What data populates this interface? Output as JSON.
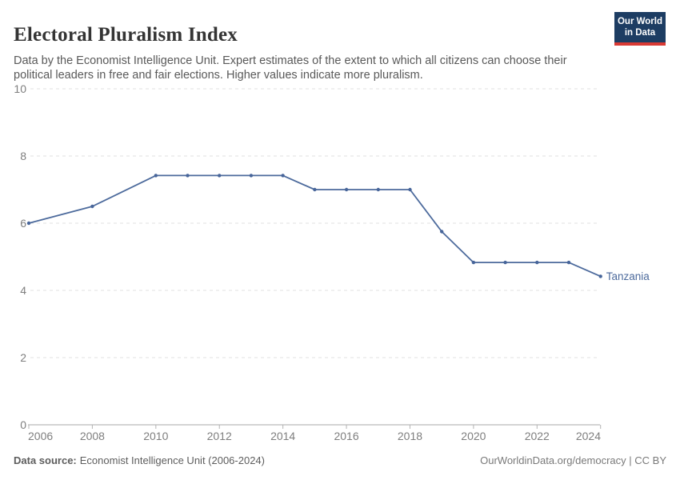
{
  "header": {
    "title": "Electoral Pluralism Index",
    "subtitle": "Data by the Economist Intelligence Unit. Expert estimates of the extent to which all citizens can choose their political leaders in free and fair elections. Higher values indicate more pluralism.",
    "logo": {
      "line1": "Our World",
      "line2": "in Data"
    }
  },
  "footer": {
    "source_label": "Data source:",
    "source_text": "Economist Intelligence Unit (2006-2024)",
    "right_text": "OurWorldinData.org/democracy | CC BY"
  },
  "chart_data": {
    "type": "line",
    "title": "Electoral Pluralism Index",
    "entity_label": "Tanzania",
    "xlim": [
      2006,
      2024
    ],
    "ylim": [
      0,
      10
    ],
    "x_ticks": [
      2006,
      2008,
      2010,
      2012,
      2014,
      2016,
      2018,
      2020,
      2022,
      2024
    ],
    "y_ticks": [
      0,
      2,
      4,
      6,
      8,
      10
    ],
    "grid": "horizontal-dashed",
    "legend_position": "end-of-line-label",
    "series": [
      {
        "name": "Tanzania",
        "points": [
          [
            2006,
            6.0
          ],
          [
            2008,
            6.5
          ],
          [
            2010,
            7.42
          ],
          [
            2011,
            7.42
          ],
          [
            2012,
            7.42
          ],
          [
            2013,
            7.42
          ],
          [
            2014,
            7.42
          ],
          [
            2015,
            7.0
          ],
          [
            2016,
            7.0
          ],
          [
            2017,
            7.0
          ],
          [
            2018,
            7.0
          ],
          [
            2019,
            5.75
          ],
          [
            2020,
            4.83
          ],
          [
            2021,
            4.83
          ],
          [
            2022,
            4.83
          ],
          [
            2023,
            4.83
          ],
          [
            2024,
            4.42
          ]
        ]
      }
    ]
  },
  "colors": {
    "line": "#4c6a9c",
    "marker": "#47659a",
    "entity_label": "#4c6a9c",
    "grid": "#e0e0e0",
    "axis_line": "#a8a8a8",
    "tick": "#b3b3b3",
    "tick_label": "#7e7e7e",
    "logo_bg": "#1d3d63",
    "logo_accent": "#d93a34"
  }
}
